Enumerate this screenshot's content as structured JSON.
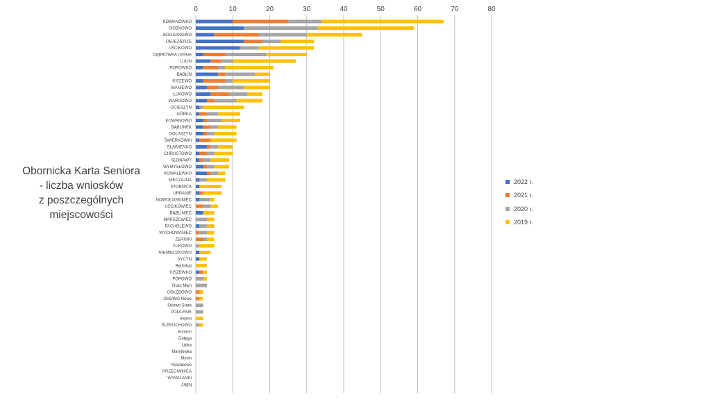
{
  "title_lines": [
    "Obornicka Karta Seniora",
    "- liczba wniosków",
    "z poszczególnych",
    "miejscowości"
  ],
  "chart_data": {
    "type": "bar",
    "orientation": "horizontal",
    "stacked": true,
    "title": "Obornicka Karta Seniora - liczba wniosków z poszczególnych miejscowości",
    "xlim": [
      0,
      80
    ],
    "xticks": [
      0,
      10,
      20,
      30,
      40,
      50,
      60,
      70,
      80
    ],
    "grid": true,
    "legend_position": "right",
    "categories": [
      "KOWANÓWKO",
      "ROŻNOWO",
      "BOGDANOWO",
      "OBJEZIERZE",
      "UŚCIKOWO",
      "DĄBRÓWKA LEŚNA",
      "LULIN",
      "POPÓWKO",
      "BĄBLIN",
      "KISZEWO",
      "MANIEWO",
      "ŁUKOWO",
      "WARGOWO",
      "OCIESZYN",
      "GÓRKA",
      "KOWANOWO",
      "BĄBLINEK",
      "GOŁASZYN",
      "ŚWIERKÓWKI",
      "SŁAWIENKO",
      "CHRUSTOWO",
      "SŁONAWY",
      "WYMYSŁOWO",
      "KOWALEWKO",
      "NIECZAJNA",
      "STOBNICA",
      "URBANIE",
      "NOWOŁOSKINIEC",
      "UŚCIKÓWIEC",
      "BĄBLINIEC",
      "MARSZEWIEC",
      "PACHOLEWO",
      "WYCHOWANIEC",
      "ŻERNIKI",
      "ŻUKOWO",
      "NIEMIECZKOWO",
      "SYCYN",
      "Będnikąt",
      "KISZEWKO",
      "POPOWO",
      "Ruks Młyn",
      "GOŁĘBOWO",
      "OSOWO Nowe",
      "Osowo Stare",
      "PODLESIE",
      "Sepno",
      "ŚLEPUCHOWO",
      "Antonin",
      "Dołęga",
      "Lipka",
      "Marylówka",
      "Mycin",
      "Nowakowo",
      "PRZECIWNICA",
      "WYPALANKI",
      "Zagaj"
    ],
    "series": [
      {
        "name": "2022 r.",
        "color": "#4472C4",
        "values": [
          10,
          13,
          5,
          13,
          12,
          2,
          4,
          2,
          6,
          2,
          3,
          4,
          3,
          1,
          1,
          2,
          2,
          2,
          1,
          3,
          1,
          1,
          2,
          3,
          1,
          1,
          1,
          1,
          0,
          2,
          0,
          1,
          0,
          0,
          0,
          1,
          1,
          0,
          1,
          0,
          0,
          0,
          0,
          0,
          0,
          0,
          0,
          0,
          0,
          0,
          0,
          0,
          0,
          0,
          0,
          0
        ]
      },
      {
        "name": "2021 r.",
        "color": "#ED7D31",
        "values": [
          15,
          0,
          12,
          5,
          0,
          6,
          3,
          4,
          2,
          6,
          3,
          5,
          2,
          0,
          2,
          1,
          2,
          1,
          3,
          1,
          2,
          1,
          1,
          1,
          0,
          0,
          1,
          0,
          2,
          0,
          0,
          0,
          1,
          2,
          0,
          0,
          0,
          0,
          1,
          0,
          0,
          1,
          1,
          0,
          0,
          0,
          0,
          0,
          0,
          0,
          0,
          0,
          0,
          0,
          0,
          0
        ]
      },
      {
        "name": "2020 r.",
        "color": "#A5A5A5",
        "values": [
          9,
          20,
          13,
          5,
          5,
          11,
          3,
          2,
          8,
          2,
          7,
          5,
          6,
          1,
          3,
          4,
          2,
          2,
          0,
          2,
          2,
          2,
          2,
          2,
          2,
          0,
          0,
          3,
          2,
          0,
          3,
          2,
          2,
          1,
          1,
          0,
          0,
          0,
          0,
          2,
          3,
          0,
          0,
          2,
          2,
          0,
          1,
          0,
          0,
          0,
          0,
          0,
          0,
          0,
          0,
          0
        ]
      },
      {
        "name": "2019 r.",
        "color": "#FFC000",
        "values": [
          33,
          26,
          15,
          9,
          15,
          11,
          17,
          13,
          4,
          10,
          7,
          4,
          7,
          11,
          6,
          5,
          5,
          6,
          7,
          4,
          5,
          5,
          4,
          2,
          5,
          6,
          5,
          1,
          2,
          3,
          2,
          2,
          2,
          2,
          4,
          3,
          2,
          3,
          1,
          1,
          0,
          1,
          1,
          0,
          0,
          2,
          1,
          0,
          0,
          0,
          0,
          0,
          0,
          0,
          0,
          0
        ]
      }
    ]
  }
}
